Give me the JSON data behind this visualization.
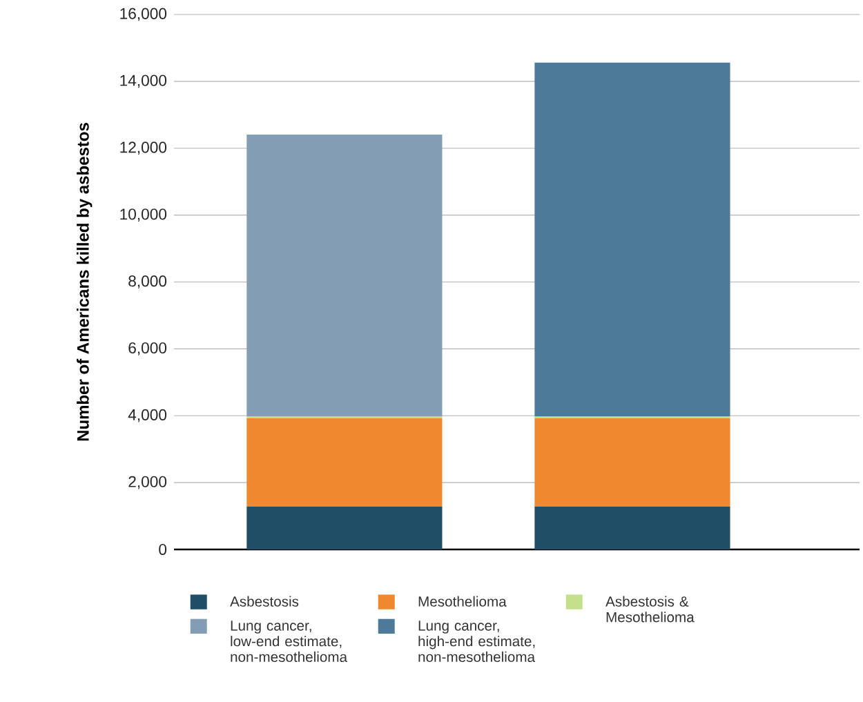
{
  "chart_data": {
    "type": "bar",
    "stacked": true,
    "ylabel": "Number of Americans killed by asbestos",
    "categories": [
      null,
      null
    ],
    "series": [
      {
        "name": "Asbestosis",
        "color": "#1f4e66",
        "values": [
          1280,
          1280
        ]
      },
      {
        "name": "Mesothelioma",
        "color": "#f08830",
        "values": [
          2640,
          2640
        ]
      },
      {
        "name": "Asbestosis & Mesothelioma",
        "color": "#c4e08c",
        "values": [
          60,
          60
        ]
      },
      {
        "name": "Lung cancer, low-end estimate, non-mesothelioma",
        "color": "#839db4",
        "values": [
          8430,
          null
        ]
      },
      {
        "name": "Lung cancer, high-end estimate, non-mesothelioma",
        "color": "#4d7a99",
        "values": [
          null,
          10580
        ]
      }
    ],
    "ylim": [
      0,
      16000
    ],
    "yticks": [
      0,
      {
        "value": 2000,
        "label": "2,000"
      },
      {
        "value": 4000,
        "label": "4,000"
      },
      {
        "value": 6000,
        "label": "6,000"
      },
      {
        "value": 8000,
        "label": "8,000"
      },
      {
        "value": 10000,
        "label": "10,000"
      },
      {
        "value": 12000,
        "label": "12,000"
      },
      {
        "value": 14000,
        "label": "14,000"
      },
      {
        "value": 16000,
        "label": "16,000"
      }
    ],
    "grid": "y",
    "legend": "bottom"
  }
}
